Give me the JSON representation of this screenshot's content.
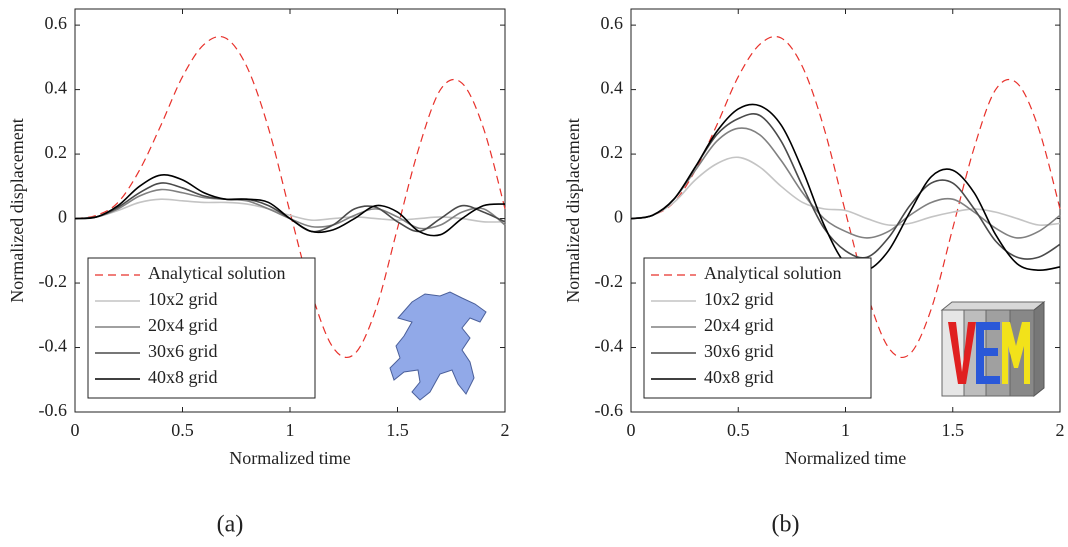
{
  "chart_data": [
    {
      "type": "line",
      "caption": "(a)",
      "xlabel": "Normalized time",
      "ylabel": "Normalized displacement",
      "xlim": [
        0,
        2
      ],
      "ylim": [
        -0.6,
        0.65
      ],
      "xticks": [
        0,
        0.5,
        1,
        1.5,
        2
      ],
      "yticks": [
        -0.6,
        -0.4,
        -0.2,
        0,
        0.2,
        0.4,
        0.6
      ],
      "legend": "lower left",
      "x": [
        0,
        0.1,
        0.2,
        0.3,
        0.4,
        0.5,
        0.6,
        0.7,
        0.8,
        0.9,
        1.0,
        1.1,
        1.2,
        1.3,
        1.4,
        1.5,
        1.6,
        1.7,
        1.8,
        1.9,
        2.0
      ],
      "series": [
        {
          "name": "Analytical solution",
          "color": "#e8312b",
          "dashed": true,
          "values": [
            0,
            0.01,
            0.05,
            0.15,
            0.29,
            0.44,
            0.54,
            0.56,
            0.47,
            0.28,
            0.02,
            -0.23,
            -0.4,
            -0.42,
            -0.28,
            -0.03,
            0.22,
            0.4,
            0.42,
            0.28,
            0.03
          ]
        },
        {
          "name": "10x2 grid",
          "color": "#c4c4c4",
          "values": [
            0,
            0.005,
            0.025,
            0.05,
            0.06,
            0.055,
            0.05,
            0.05,
            0.045,
            0.03,
            0.01,
            -0.005,
            0.0,
            0.005,
            0.0,
            -0.005,
            0.0,
            0.005,
            0.0,
            -0.01,
            -0.01
          ]
        },
        {
          "name": "20x4 grid",
          "color": "#808080",
          "values": [
            0,
            0.005,
            0.03,
            0.07,
            0.09,
            0.08,
            0.065,
            0.06,
            0.055,
            0.03,
            0.0,
            -0.025,
            -0.02,
            0.01,
            0.03,
            0.005,
            -0.03,
            -0.02,
            0.02,
            0.03,
            -0.02
          ]
        },
        {
          "name": "30x6 grid",
          "color": "#4a4a4a",
          "values": [
            0,
            0.005,
            0.035,
            0.08,
            0.11,
            0.095,
            0.07,
            0.06,
            0.06,
            0.04,
            0.0,
            -0.04,
            -0.02,
            0.03,
            0.035,
            -0.01,
            -0.04,
            0.0,
            0.04,
            0.02,
            -0.01
          ]
        },
        {
          "name": "40x8 grid",
          "color": "#000000",
          "values": [
            0,
            0.005,
            0.04,
            0.1,
            0.135,
            0.12,
            0.08,
            0.06,
            0.06,
            0.05,
            0.0,
            -0.04,
            -0.035,
            0.0,
            0.04,
            0.02,
            -0.04,
            -0.05,
            0.0,
            0.04,
            0.045
          ]
        }
      ]
    },
    {
      "type": "line",
      "caption": "(b)",
      "xlabel": "Normalized time",
      "ylabel": "Normalized displacement",
      "xlim": [
        0,
        2
      ],
      "ylim": [
        -0.6,
        0.65
      ],
      "xticks": [
        0,
        0.5,
        1,
        1.5,
        2
      ],
      "yticks": [
        -0.6,
        -0.4,
        -0.2,
        0,
        0.2,
        0.4,
        0.6
      ],
      "legend": "lower left",
      "x": [
        0,
        0.1,
        0.2,
        0.3,
        0.4,
        0.5,
        0.6,
        0.7,
        0.8,
        0.9,
        1.0,
        1.1,
        1.2,
        1.3,
        1.4,
        1.5,
        1.6,
        1.7,
        1.8,
        1.9,
        2.0
      ],
      "series": [
        {
          "name": "Analytical solution",
          "color": "#e8312b",
          "dashed": true,
          "values": [
            0,
            0.01,
            0.05,
            0.15,
            0.29,
            0.44,
            0.54,
            0.56,
            0.47,
            0.28,
            0.02,
            -0.23,
            -0.4,
            -0.42,
            -0.28,
            -0.03,
            0.22,
            0.4,
            0.42,
            0.28,
            0.03
          ]
        },
        {
          "name": "10x2 grid",
          "color": "#c4c4c4",
          "values": [
            0,
            0.01,
            0.05,
            0.12,
            0.17,
            0.19,
            0.16,
            0.1,
            0.05,
            0.03,
            0.025,
            0.0,
            -0.02,
            -0.015,
            0.005,
            0.02,
            0.03,
            0.02,
            0.0,
            -0.02,
            -0.015
          ]
        },
        {
          "name": "20x4 grid",
          "color": "#808080",
          "values": [
            0,
            0.01,
            0.06,
            0.15,
            0.24,
            0.28,
            0.26,
            0.18,
            0.08,
            0.0,
            -0.04,
            -0.06,
            -0.04,
            0.01,
            0.05,
            0.06,
            0.02,
            -0.03,
            -0.06,
            -0.04,
            0.01
          ]
        },
        {
          "name": "30x6 grid",
          "color": "#4a4a4a",
          "values": [
            0,
            0.01,
            0.06,
            0.16,
            0.26,
            0.31,
            0.32,
            0.24,
            0.1,
            -0.03,
            -0.1,
            -0.12,
            -0.06,
            0.04,
            0.11,
            0.11,
            0.03,
            -0.07,
            -0.12,
            -0.12,
            -0.08
          ]
        },
        {
          "name": "40x8 grid",
          "color": "#000000",
          "values": [
            0,
            0.01,
            0.06,
            0.16,
            0.27,
            0.34,
            0.35,
            0.29,
            0.15,
            -0.02,
            -0.14,
            -0.16,
            -0.1,
            0.02,
            0.13,
            0.15,
            0.08,
            -0.05,
            -0.14,
            -0.16,
            -0.15
          ]
        }
      ]
    }
  ]
}
